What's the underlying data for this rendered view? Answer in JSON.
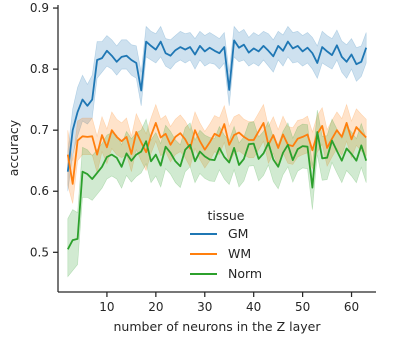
{
  "chart_data": {
    "type": "line",
    "xlabel": "number of neurons in the Z layer",
    "ylabel": "accuracy",
    "xlim": [
      0,
      65
    ],
    "ylim": [
      0.435,
      0.905
    ],
    "xticks": [
      10,
      20,
      30,
      40,
      50,
      60
    ],
    "yticks": [
      0.5,
      0.6,
      0.7,
      0.8,
      0.9
    ],
    "xtick_labels": [
      "10",
      "20",
      "30",
      "40",
      "50",
      "60"
    ],
    "ytick_labels": [
      "0.5",
      "0.6",
      "0.7",
      "0.8",
      "0.9"
    ],
    "grid": false,
    "legend": {
      "title": "tissue",
      "position": "center-bottom"
    },
    "x": [
      2,
      3,
      4,
      5,
      6,
      7,
      8,
      9,
      10,
      11,
      12,
      13,
      14,
      15,
      16,
      17,
      18,
      19,
      20,
      21,
      22,
      23,
      24,
      25,
      26,
      27,
      28,
      29,
      30,
      31,
      32,
      33,
      34,
      35,
      36,
      37,
      38,
      39,
      40,
      41,
      42,
      43,
      44,
      45,
      46,
      47,
      48,
      49,
      50,
      51,
      52,
      53,
      54,
      55,
      56,
      57,
      58,
      59,
      60,
      61,
      62,
      63
    ],
    "series": [
      {
        "name": "GM",
        "color": "#1f77b4",
        "values": [
          0.632,
          0.7,
          0.73,
          0.75,
          0.74,
          0.75,
          0.815,
          0.818,
          0.83,
          0.822,
          0.812,
          0.82,
          0.822,
          0.815,
          0.81,
          0.765,
          0.845,
          0.838,
          0.832,
          0.845,
          0.826,
          0.822,
          0.831,
          0.836,
          0.832,
          0.836,
          0.824,
          0.838,
          0.829,
          0.835,
          0.83,
          0.826,
          0.836,
          0.766,
          0.847,
          0.835,
          0.84,
          0.827,
          0.834,
          0.829,
          0.838,
          0.83,
          0.821,
          0.838,
          0.83,
          0.845,
          0.834,
          0.838,
          0.829,
          0.835,
          0.826,
          0.81,
          0.836,
          0.829,
          0.823,
          0.839,
          0.82,
          0.812,
          0.824,
          0.808,
          0.812,
          0.835
        ],
        "lower": [
          0.6,
          0.66,
          0.69,
          0.715,
          0.71,
          0.72,
          0.785,
          0.795,
          0.805,
          0.8,
          0.79,
          0.8,
          0.8,
          0.79,
          0.785,
          0.74,
          0.82,
          0.815,
          0.81,
          0.82,
          0.805,
          0.8,
          0.81,
          0.815,
          0.81,
          0.815,
          0.8,
          0.815,
          0.805,
          0.81,
          0.808,
          0.8,
          0.81,
          0.74,
          0.82,
          0.812,
          0.815,
          0.805,
          0.81,
          0.805,
          0.815,
          0.805,
          0.795,
          0.815,
          0.805,
          0.82,
          0.81,
          0.812,
          0.805,
          0.81,
          0.8,
          0.785,
          0.81,
          0.805,
          0.8,
          0.815,
          0.795,
          0.785,
          0.8,
          0.78,
          0.788,
          0.81
        ],
        "upper": [
          0.665,
          0.735,
          0.77,
          0.79,
          0.775,
          0.79,
          0.845,
          0.845,
          0.855,
          0.848,
          0.838,
          0.848,
          0.848,
          0.84,
          0.838,
          0.795,
          0.87,
          0.862,
          0.858,
          0.87,
          0.85,
          0.848,
          0.855,
          0.862,
          0.858,
          0.86,
          0.85,
          0.862,
          0.855,
          0.86,
          0.855,
          0.85,
          0.86,
          0.795,
          0.87,
          0.86,
          0.865,
          0.852,
          0.86,
          0.855,
          0.862,
          0.858,
          0.848,
          0.862,
          0.856,
          0.87,
          0.86,
          0.862,
          0.855,
          0.86,
          0.852,
          0.838,
          0.862,
          0.855,
          0.85,
          0.864,
          0.846,
          0.84,
          0.85,
          0.835,
          0.838,
          0.86
        ]
      },
      {
        "name": "WM",
        "color": "#ff7f0e",
        "values": [
          0.66,
          0.612,
          0.683,
          0.69,
          0.689,
          0.69,
          0.66,
          0.692,
          0.672,
          0.7,
          0.689,
          0.682,
          0.689,
          0.661,
          0.697,
          0.68,
          0.664,
          0.691,
          0.712,
          0.688,
          0.694,
          0.676,
          0.689,
          0.695,
          0.685,
          0.67,
          0.7,
          0.682,
          0.668,
          0.68,
          0.694,
          0.69,
          0.71,
          0.676,
          0.692,
          0.696,
          0.689,
          0.684,
          0.684,
          0.698,
          0.712,
          0.676,
          0.692,
          0.671,
          0.693,
          0.676,
          0.674,
          0.686,
          0.689,
          0.693,
          0.667,
          0.694,
          0.707,
          0.671,
          0.686,
          0.7,
          0.689,
          0.712,
          0.685,
          0.705,
          0.696,
          0.688
        ],
        "lower": [
          0.61,
          0.58,
          0.65,
          0.66,
          0.66,
          0.66,
          0.63,
          0.665,
          0.645,
          0.67,
          0.66,
          0.655,
          0.66,
          0.632,
          0.668,
          0.65,
          0.634,
          0.662,
          0.682,
          0.658,
          0.665,
          0.648,
          0.66,
          0.665,
          0.655,
          0.64,
          0.67,
          0.652,
          0.638,
          0.65,
          0.665,
          0.66,
          0.68,
          0.646,
          0.662,
          0.666,
          0.66,
          0.655,
          0.655,
          0.668,
          0.682,
          0.646,
          0.662,
          0.641,
          0.663,
          0.646,
          0.644,
          0.656,
          0.66,
          0.663,
          0.637,
          0.664,
          0.677,
          0.641,
          0.656,
          0.67,
          0.659,
          0.682,
          0.655,
          0.675,
          0.666,
          0.658
        ],
        "upper": [
          0.7,
          0.65,
          0.715,
          0.72,
          0.72,
          0.72,
          0.69,
          0.722,
          0.702,
          0.73,
          0.718,
          0.712,
          0.72,
          0.69,
          0.727,
          0.71,
          0.694,
          0.72,
          0.742,
          0.718,
          0.724,
          0.706,
          0.718,
          0.725,
          0.715,
          0.7,
          0.73,
          0.712,
          0.698,
          0.71,
          0.724,
          0.72,
          0.74,
          0.706,
          0.722,
          0.726,
          0.718,
          0.714,
          0.714,
          0.728,
          0.742,
          0.706,
          0.722,
          0.701,
          0.723,
          0.706,
          0.704,
          0.716,
          0.718,
          0.723,
          0.697,
          0.724,
          0.737,
          0.701,
          0.716,
          0.73,
          0.719,
          0.742,
          0.715,
          0.735,
          0.726,
          0.718
        ]
      },
      {
        "name": "Norm",
        "color": "#2ca02c",
        "values": [
          0.505,
          0.52,
          0.522,
          0.632,
          0.628,
          0.62,
          0.63,
          0.64,
          0.656,
          0.66,
          0.655,
          0.64,
          0.662,
          0.65,
          0.66,
          0.665,
          0.682,
          0.649,
          0.66,
          0.642,
          0.673,
          0.663,
          0.649,
          0.641,
          0.668,
          0.676,
          0.649,
          0.665,
          0.657,
          0.652,
          0.651,
          0.671,
          0.656,
          0.647,
          0.671,
          0.643,
          0.653,
          0.677,
          0.678,
          0.653,
          0.662,
          0.679,
          0.652,
          0.64,
          0.663,
          0.676,
          0.651,
          0.669,
          0.674,
          0.673,
          0.606,
          0.697,
          0.654,
          0.655,
          0.683,
          0.666,
          0.65,
          0.67,
          0.661,
          0.65,
          0.675,
          0.65
        ],
        "lower": [
          0.46,
          0.47,
          0.48,
          0.59,
          0.59,
          0.585,
          0.595,
          0.605,
          0.62,
          0.625,
          0.62,
          0.605,
          0.626,
          0.615,
          0.624,
          0.63,
          0.645,
          0.614,
          0.625,
          0.607,
          0.637,
          0.628,
          0.614,
          0.606,
          0.632,
          0.64,
          0.614,
          0.629,
          0.621,
          0.617,
          0.616,
          0.635,
          0.62,
          0.611,
          0.635,
          0.607,
          0.617,
          0.641,
          0.642,
          0.617,
          0.626,
          0.643,
          0.616,
          0.604,
          0.627,
          0.64,
          0.615,
          0.633,
          0.638,
          0.637,
          0.57,
          0.66,
          0.618,
          0.619,
          0.647,
          0.63,
          0.614,
          0.634,
          0.625,
          0.614,
          0.639,
          0.614
        ],
        "upper": [
          0.555,
          0.57,
          0.565,
          0.672,
          0.668,
          0.658,
          0.668,
          0.678,
          0.692,
          0.696,
          0.692,
          0.676,
          0.698,
          0.686,
          0.696,
          0.7,
          0.718,
          0.684,
          0.696,
          0.678,
          0.708,
          0.698,
          0.684,
          0.676,
          0.704,
          0.712,
          0.684,
          0.7,
          0.692,
          0.688,
          0.686,
          0.706,
          0.692,
          0.683,
          0.706,
          0.679,
          0.689,
          0.712,
          0.714,
          0.689,
          0.698,
          0.714,
          0.688,
          0.676,
          0.698,
          0.712,
          0.687,
          0.705,
          0.71,
          0.709,
          0.642,
          0.733,
          0.69,
          0.691,
          0.718,
          0.702,
          0.686,
          0.706,
          0.697,
          0.686,
          0.711,
          0.686
        ]
      }
    ]
  }
}
